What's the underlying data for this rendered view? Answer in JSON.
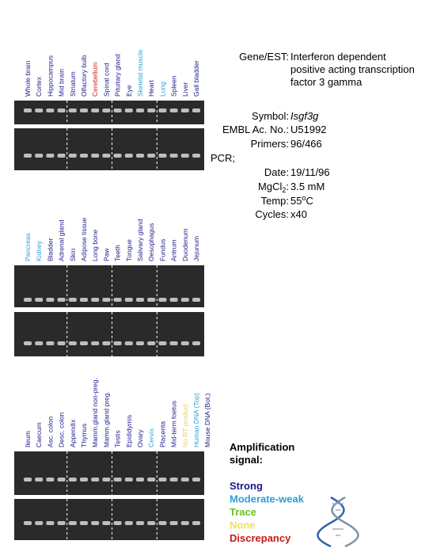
{
  "panels": [
    {
      "lanes": [
        {
          "label": "Whole brain",
          "color": "#1a1a8c"
        },
        {
          "label": "Cortex",
          "color": "#1a1a8c"
        },
        {
          "label": "Hippocampus",
          "color": "#1a1a8c"
        },
        {
          "label": "Mid brain",
          "color": "#1a1a8c"
        },
        {
          "label": "Striatum",
          "color": "#1a1a8c"
        },
        {
          "label": "Olfactory bulb",
          "color": "#1a1a8c"
        },
        {
          "label": "Cerebellum",
          "color": "#d42020"
        },
        {
          "label": "Spinal cord",
          "color": "#1a1a8c"
        },
        {
          "label": "Pituitary gland",
          "color": "#1a1a8c"
        },
        {
          "label": "Eye",
          "color": "#1a1a8c"
        },
        {
          "label": "Skeletal muscle",
          "color": "#2aa0d8"
        },
        {
          "label": "Heart",
          "color": "#1a1a8c"
        },
        {
          "label": "Lung",
          "color": "#2aa0d8"
        },
        {
          "label": "Spleen",
          "color": "#1a1a8c"
        },
        {
          "label": "Liver",
          "color": "#1a1a8c"
        },
        {
          "label": "Gall bladder",
          "color": "#1a1a8c"
        }
      ]
    },
    {
      "lanes": [
        {
          "label": "Pancreas",
          "color": "#2aa0d8"
        },
        {
          "label": "Kidney",
          "color": "#2aa0d8"
        },
        {
          "label": "Bladder",
          "color": "#1a1a8c"
        },
        {
          "label": "Adrenal gland",
          "color": "#1a1a8c"
        },
        {
          "label": "Skin",
          "color": "#1a1a8c"
        },
        {
          "label": "Adipose tissue",
          "color": "#1a1a8c"
        },
        {
          "label": "Long bone",
          "color": "#1a1a8c"
        },
        {
          "label": "Paw",
          "color": "#1a1a8c"
        },
        {
          "label": "Teeth",
          "color": "#1a1a8c"
        },
        {
          "label": "Tongue",
          "color": "#1a1a8c"
        },
        {
          "label": "Salivary gland",
          "color": "#1a1a8c"
        },
        {
          "label": "Oesophagus",
          "color": "#1a1a8c"
        },
        {
          "label": "Fundus",
          "color": "#1a1a8c"
        },
        {
          "label": "Antrum",
          "color": "#1a1a8c"
        },
        {
          "label": "Duodenum",
          "color": "#1a1a8c"
        },
        {
          "label": "Jejunum",
          "color": "#1a1a8c"
        }
      ]
    },
    {
      "lanes": [
        {
          "label": "Ileum",
          "color": "#1a1a8c"
        },
        {
          "label": "Caecum",
          "color": "#1a1a8c"
        },
        {
          "label": "Asc. colon",
          "color": "#1a1a8c"
        },
        {
          "label": "Desc. colon",
          "color": "#1a1a8c"
        },
        {
          "label": "Appendix",
          "color": "#1a1a8c"
        },
        {
          "label": "Thymus",
          "color": "#1a1a8c"
        },
        {
          "label": "Mamm.gland non-preg.",
          "color": "#1a1a8c"
        },
        {
          "label": "Mamm.gland preg.",
          "color": "#1a1a8c"
        },
        {
          "label": "Testis",
          "color": "#1a1a8c"
        },
        {
          "label": "Epididymis",
          "color": "#1a1a8c"
        },
        {
          "label": "Ovary",
          "color": "#1a1a8c"
        },
        {
          "label": "Cervix",
          "color": "#2aa0d8"
        },
        {
          "label": "Placenta",
          "color": "#1a1a8c"
        },
        {
          "label": "Mid-term foetus",
          "color": "#1a1a8c"
        },
        {
          "label": "No RT product",
          "color": "#e8d060"
        },
        {
          "label": "Human DNA (Top)",
          "color": "#2aa0d8"
        },
        {
          "label": "Mouse DNA (Bot.)",
          "color": "#1a1a8c"
        }
      ]
    }
  ],
  "info": {
    "gene_label": "Gene/EST:",
    "gene_lines": [
      "Interferon dependent",
      "positive acting transcription",
      "factor 3 gamma"
    ],
    "symbol_label": "Symbol:",
    "symbol": "Isgf3g",
    "embl_label": "EMBL Ac. No.:",
    "embl": "U51992",
    "primers_label": "Primers:",
    "primers": "96/466",
    "pcr_label": "PCR;",
    "date_label": "Date:",
    "date": "19/11/96",
    "mgcl_label": [
      "MgCl",
      "2",
      ":"
    ],
    "mgcl": "3.5 mM",
    "temp_label": "Temp:",
    "temp": [
      "55",
      "o",
      "C"
    ],
    "cycles_label": "Cycles:",
    "cycles": "x40"
  },
  "legend": {
    "title_lines": [
      "Amplification",
      "signal:"
    ],
    "items": [
      {
        "label": "Strong",
        "color": "#1a1a8c"
      },
      {
        "label": "Moderate-weak",
        "color": "#2aa0d8"
      },
      {
        "label": "Trace",
        "color": "#6cc020"
      },
      {
        "label": "None",
        "color": "#f0e060"
      },
      {
        "label": "Discrepancy",
        "color": "#c81818"
      }
    ]
  }
}
